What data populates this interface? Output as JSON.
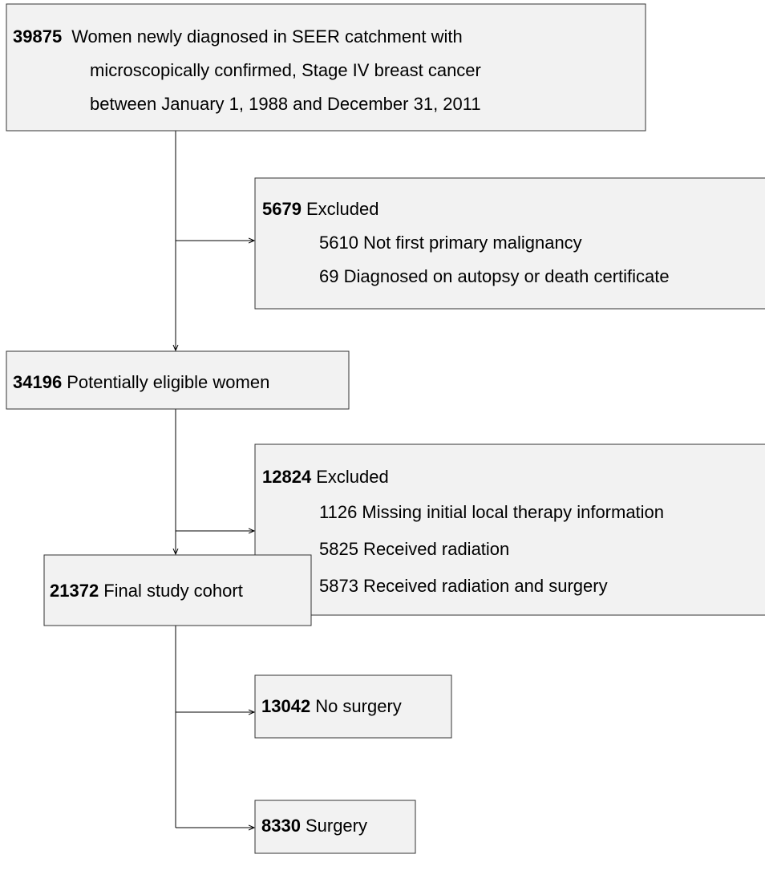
{
  "nodes": [
    {
      "count": "39875",
      "lines": [
        "Women newly diagnosed in SEER catchment with",
        "microscopically confirmed, Stage IV breast cancer",
        "between January 1, 1988 and December 31, 2011"
      ]
    },
    {
      "count": "5679",
      "label": "Excluded",
      "items": [
        "5610 Not first primary malignancy",
        "69 Diagnosed on autopsy or death certificate"
      ]
    },
    {
      "count": "34196",
      "label": "Potentially eligible women"
    },
    {
      "count": "12824",
      "label": "Excluded",
      "items": [
        "1126 Missing initial local therapy information",
        "5825 Received radiation",
        "5873 Received radiation and surgery"
      ]
    },
    {
      "count": "21372",
      "label": "Final study cohort"
    },
    {
      "count": "13042",
      "label": "No surgery"
    },
    {
      "count": "8330",
      "label": "Surgery"
    }
  ]
}
